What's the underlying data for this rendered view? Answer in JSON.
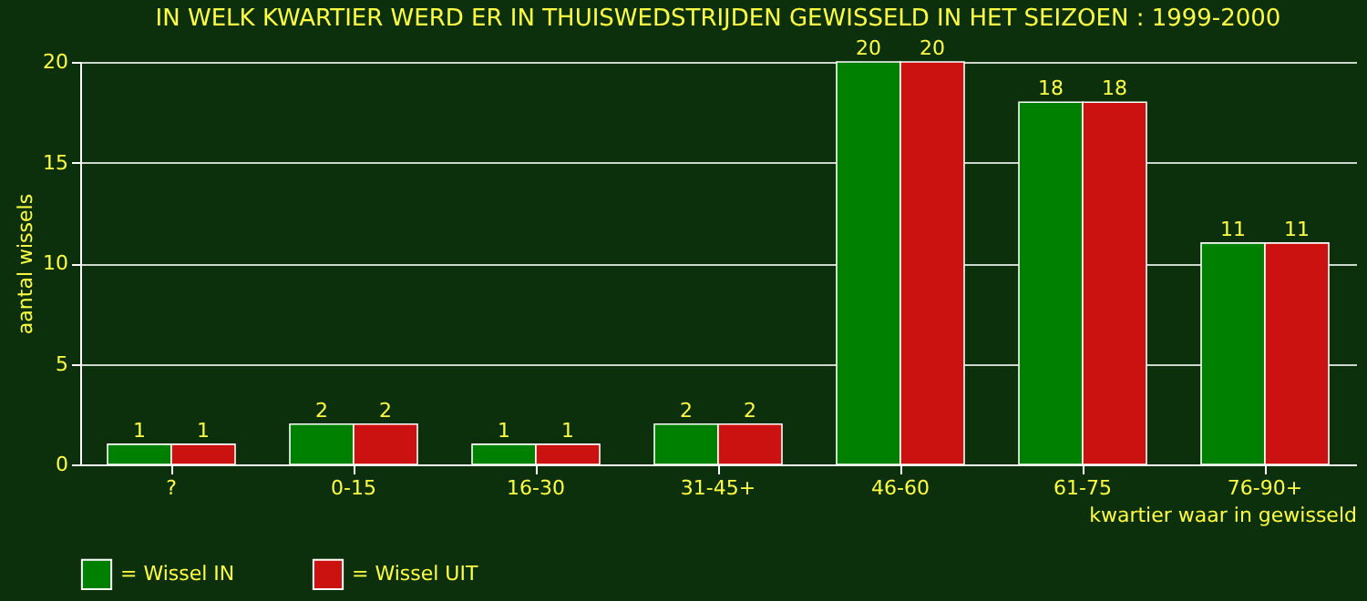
{
  "chart_data": {
    "type": "bar",
    "title": "IN WELK KWARTIER WERD ER IN THUISWEDSTRIJDEN GEWISSELD IN HET SEIZOEN : 1999-2000",
    "ylabel": "aantal wissels",
    "xlabel": "kwartier waar in gewisseld",
    "categories": [
      "?",
      "0-15",
      "16-30",
      "31-45+",
      "46-60",
      "61-75",
      "76-90+"
    ],
    "series": [
      {
        "name": "= Wissel IN",
        "color": "#008000",
        "values": [
          1,
          2,
          1,
          2,
          20,
          18,
          11
        ]
      },
      {
        "name": "= Wissel UIT",
        "color": "#cc1111",
        "values": [
          1,
          2,
          1,
          2,
          20,
          18,
          11
        ]
      }
    ],
    "ylim": [
      0,
      20
    ],
    "yticks": [
      0,
      5,
      10,
      15,
      20
    ],
    "grid": "y",
    "legend": "bottom",
    "data_labels": true
  }
}
